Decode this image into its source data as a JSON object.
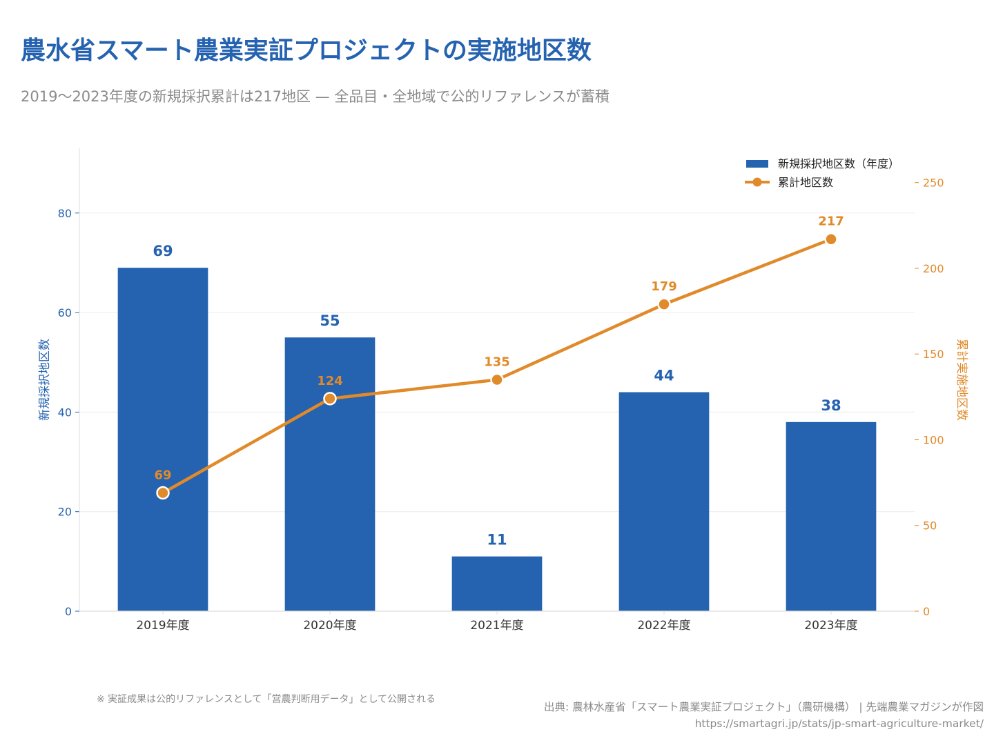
{
  "title": "農水省スマート農業実証プロジェクトの実施地区数",
  "subtitle": "2019〜2023年度の新規採択累計は217地区 — 全品目・全地域で公的リファレンスが蓄積",
  "note": "※ 実証成果は公的リファレンスとして「営農判断用データ」として公開される",
  "source": "出典: 農林水産省「スマート農業実証プロジェクト」（農研機構） | 先端農業マガジンが作図",
  "source_url": "https://smartagri.jp/stats/jp-smart-agriculture-market/",
  "colors": {
    "bar": "#2563b0",
    "line": "#e08a2a",
    "title": "#2563b0"
  },
  "chart_data": {
    "type": "bar",
    "categories": [
      "2019年度",
      "2020年度",
      "2021年度",
      "2022年度",
      "2023年度"
    ],
    "series": [
      {
        "name": "新規採択地区数（年度）",
        "type": "bar",
        "axis": "left",
        "values": [
          69,
          55,
          11,
          44,
          38
        ]
      },
      {
        "name": "累計地区数",
        "type": "line",
        "axis": "right",
        "values": [
          69,
          124,
          135,
          179,
          217
        ]
      }
    ],
    "ylabel": "新規採択地区数",
    "y2label": "累計実施地区数",
    "ylim": [
      0,
      93
    ],
    "y2lim": [
      0,
      270
    ],
    "yticks": [
      0,
      20,
      40,
      60,
      80
    ],
    "y2ticks": [
      0,
      50,
      100,
      150,
      200,
      250
    ],
    "grid": true,
    "legend": "top-right"
  }
}
